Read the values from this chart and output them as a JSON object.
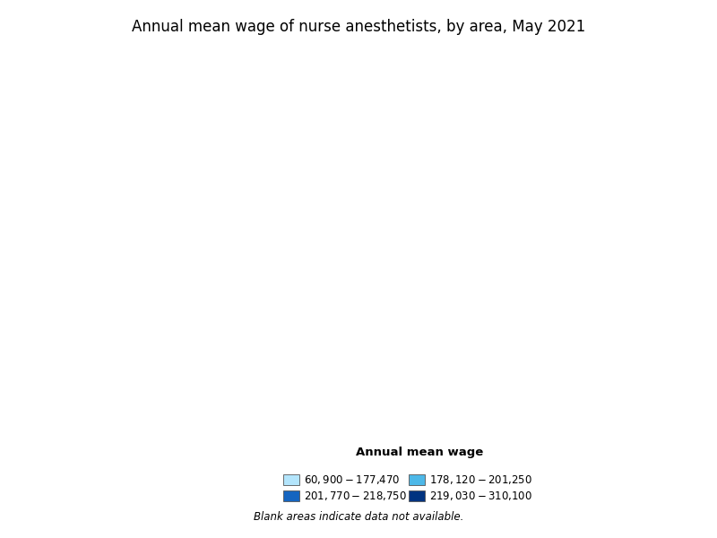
{
  "title": "Annual mean wage of nurse anesthetists, by area, May 2021",
  "legend_title": "Annual mean wage",
  "legend_col1": [
    "$60,900 - $177,470",
    "$201,770 - $218,750"
  ],
  "legend_col2": [
    "$178,120 - $201,250",
    "$219,030 - $310,100"
  ],
  "legend_colors_ordered": [
    "#b3e5fc",
    "#4db8e8",
    "#1565c0",
    "#003380"
  ],
  "color_tier1": "#b3e5fc",
  "color_tier2": "#4db8e8",
  "color_tier3": "#1565c0",
  "color_tier4": "#003380",
  "color_nodata": "#ffffff",
  "border_color": "#333333",
  "state_border_color": "#000000",
  "background": "#ffffff",
  "title_fontsize": 12,
  "legend_fontsize": 8.5,
  "blank_note": "Blank areas indicate data not available."
}
